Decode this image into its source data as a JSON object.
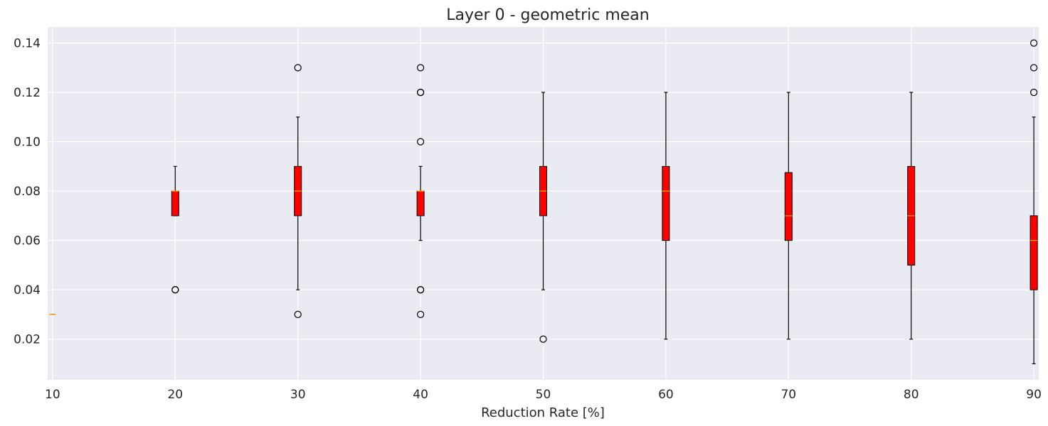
{
  "chart_data": {
    "type": "box",
    "title": "Layer 0 - geometric mean",
    "xlabel": "Reduction Rate [%]",
    "ylabel": "",
    "xlim": [
      9.6,
      90.4
    ],
    "ylim": [
      0.0035,
      0.1465
    ],
    "grid": true,
    "x_ticks": [
      10,
      20,
      30,
      40,
      50,
      60,
      70,
      80,
      90
    ],
    "y_ticks": [
      0.02,
      0.04,
      0.06,
      0.08,
      0.1,
      0.12,
      0.14
    ],
    "y_tick_labels": [
      "0.02",
      "0.04",
      "0.06",
      "0.08",
      "0.10",
      "0.12",
      "0.14"
    ],
    "colors": {
      "box_fill": "#ff0000",
      "median": "#ffa500",
      "background": "#eaeaf2",
      "grid": "#ffffff"
    },
    "boxes": [
      {
        "x": 10,
        "whisker_low": 0.03,
        "q1": 0.03,
        "median": 0.03,
        "q3": 0.03,
        "whisker_high": 0.03,
        "outliers": []
      },
      {
        "x": 20,
        "whisker_low": 0.07,
        "q1": 0.07,
        "median": 0.08,
        "q3": 0.08,
        "whisker_high": 0.09,
        "outliers": [
          0.04,
          0.04
        ]
      },
      {
        "x": 30,
        "whisker_low": 0.04,
        "q1": 0.07,
        "median": 0.08,
        "q3": 0.09,
        "whisker_high": 0.11,
        "outliers": [
          0.13,
          0.03
        ]
      },
      {
        "x": 40,
        "whisker_low": 0.06,
        "q1": 0.07,
        "median": 0.08,
        "q3": 0.08,
        "whisker_high": 0.09,
        "outliers": [
          0.13,
          0.12,
          0.12,
          0.1,
          0.04,
          0.04,
          0.03
        ]
      },
      {
        "x": 50,
        "whisker_low": 0.04,
        "q1": 0.07,
        "median": 0.08,
        "q3": 0.09,
        "whisker_high": 0.12,
        "outliers": [
          0.02
        ]
      },
      {
        "x": 60,
        "whisker_low": 0.02,
        "q1": 0.06,
        "median": 0.08,
        "q3": 0.09,
        "whisker_high": 0.12,
        "outliers": []
      },
      {
        "x": 70,
        "whisker_low": 0.02,
        "q1": 0.06,
        "median": 0.07,
        "q3": 0.0875,
        "whisker_high": 0.12,
        "outliers": []
      },
      {
        "x": 80,
        "whisker_low": 0.02,
        "q1": 0.05,
        "median": 0.07,
        "q3": 0.09,
        "whisker_high": 0.12,
        "outliers": []
      },
      {
        "x": 90,
        "whisker_low": 0.01,
        "q1": 0.04,
        "median": 0.06,
        "q3": 0.07,
        "whisker_high": 0.11,
        "outliers": [
          0.14,
          0.13,
          0.12
        ]
      }
    ]
  }
}
